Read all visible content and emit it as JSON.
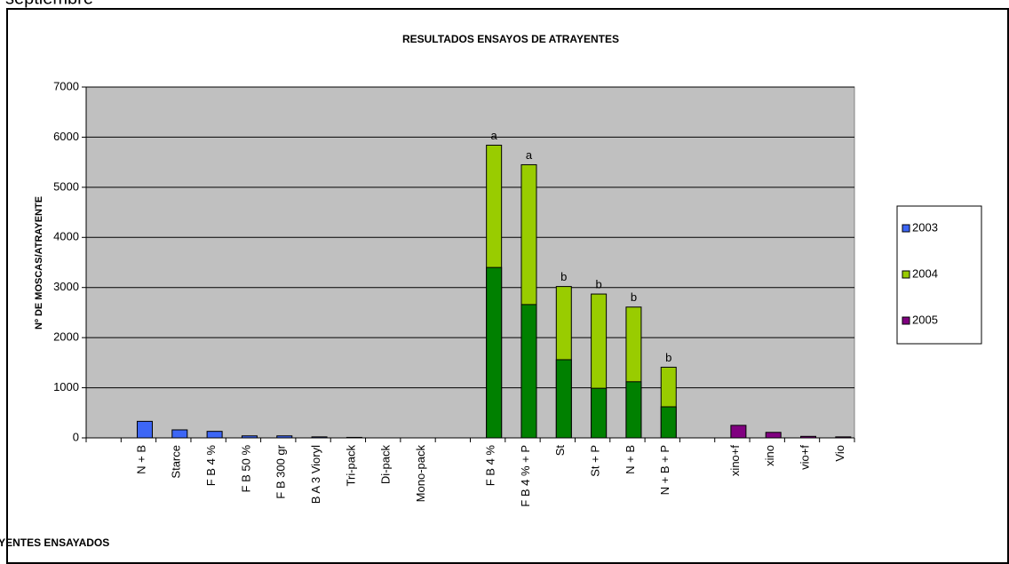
{
  "header_text": "septiembre",
  "chart_data": {
    "type": "bar",
    "overlap": true,
    "title": "RESULTADOS ENSAYOS DE ATRAYENTES",
    "x_label": "ATRAYENTES ENSAYADOS",
    "y_label": "Nº DE MOSCAS/ATRAYENTE",
    "categories": [
      null,
      "N + B",
      "Starce",
      "F B 4 %",
      "F B 50 %",
      "F B 300 gr",
      "B A 3 Vioryl",
      "Tri-pack",
      "Di-pack",
      "Mono-pack",
      null,
      "F B 4 %",
      "F B 4 % + P",
      "St",
      "St + P",
      "N + B",
      "N + B + P",
      null,
      "xino+f",
      "xino",
      "vio+f",
      "Vio"
    ],
    "series": [
      {
        "name": "2003",
        "color": "#3d66f5",
        "values": [
          null,
          330,
          160,
          130,
          40,
          40,
          20,
          10,
          0,
          0,
          null,
          null,
          null,
          null,
          null,
          null,
          null,
          null,
          null,
          null,
          null,
          null
        ]
      },
      {
        "name": "2004",
        "color": "#99cc00",
        "values": [
          null,
          null,
          null,
          null,
          null,
          null,
          null,
          null,
          null,
          null,
          null,
          5840,
          5450,
          3020,
          2870,
          2610,
          1410,
          null,
          null,
          null,
          null,
          null
        ],
        "value_labels": [
          null,
          null,
          null,
          null,
          null,
          null,
          null,
          null,
          null,
          null,
          null,
          "a",
          "a",
          "b",
          "b",
          "b",
          "b",
          null,
          null,
          null,
          null,
          null
        ]
      },
      {
        "color": "#008000",
        "values": [
          null,
          null,
          null,
          null,
          null,
          null,
          null,
          null,
          null,
          null,
          null,
          3400,
          2660,
          1560,
          990,
          1120,
          620,
          null,
          null,
          null,
          null,
          null
        ]
      },
      {
        "name": "2005",
        "color": "#800080",
        "values": [
          null,
          null,
          null,
          null,
          null,
          null,
          null,
          null,
          null,
          null,
          null,
          null,
          null,
          null,
          null,
          null,
          null,
          null,
          250,
          110,
          30,
          20
        ]
      }
    ],
    "ylim": [
      0,
      7000
    ],
    "yticks": [
      0,
      1000,
      2000,
      3000,
      4000,
      5000,
      6000,
      7000
    ],
    "grid": true,
    "plot_color": "#c0c0c0",
    "legend": "right"
  }
}
